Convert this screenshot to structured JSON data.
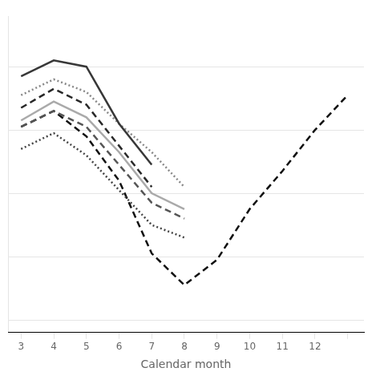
{
  "chart_data": {
    "type": "line",
    "xlabel": "Calendar month",
    "x": [
      3,
      4,
      5,
      6,
      7,
      8,
      9,
      10,
      11,
      12,
      13
    ],
    "xlim": [
      2.6,
      13.5
    ],
    "xticks": [
      3,
      4,
      5,
      6,
      7,
      8,
      9,
      10,
      11,
      12,
      {
        "value": 13,
        "label": ""
      }
    ],
    "ylim": [
      -2.2,
      2.8
    ],
    "yticks": [
      2.0,
      1.0,
      0.0,
      -1.0,
      -2.0
    ],
    "grid": "y",
    "tick_labels": "x",
    "series": [
      {
        "color": "#383838",
        "line_style": "solid",
        "values": [
          1.85,
          2.1,
          2.0,
          1.1,
          0.45,
          null,
          null,
          null,
          null,
          null,
          null
        ]
      },
      {
        "color": "#888888",
        "line_style": "dotted",
        "values": [
          1.55,
          1.8,
          1.6,
          1.1,
          0.65,
          0.1,
          null,
          null,
          null,
          null,
          null
        ]
      },
      {
        "color": "#282828",
        "line_style": "dashed",
        "values": [
          1.35,
          1.65,
          1.4,
          0.75,
          0.1,
          null,
          null,
          null,
          null,
          null,
          null
        ]
      },
      {
        "color": "#aaaaaa",
        "line_style": "solid",
        "values": [
          1.15,
          1.45,
          1.2,
          0.65,
          0.0,
          -0.25,
          null,
          null,
          null,
          null,
          null
        ]
      },
      {
        "color": "#555555",
        "line_style": "dashed",
        "values": [
          1.05,
          1.3,
          1.05,
          0.45,
          -0.15,
          -0.4,
          null,
          null,
          null,
          null,
          null
        ]
      },
      {
        "color": "#454545",
        "line_style": "dotted",
        "values": [
          0.7,
          0.95,
          0.6,
          0.05,
          -0.5,
          -0.7,
          null,
          null,
          null,
          null,
          null
        ]
      },
      {
        "color": "#111111",
        "line_style": "dashed",
        "values": [
          1.05,
          1.3,
          0.9,
          0.2,
          -0.95,
          -1.45,
          -1.05,
          -0.25,
          0.35,
          1.0,
          1.55
        ]
      }
    ]
  }
}
